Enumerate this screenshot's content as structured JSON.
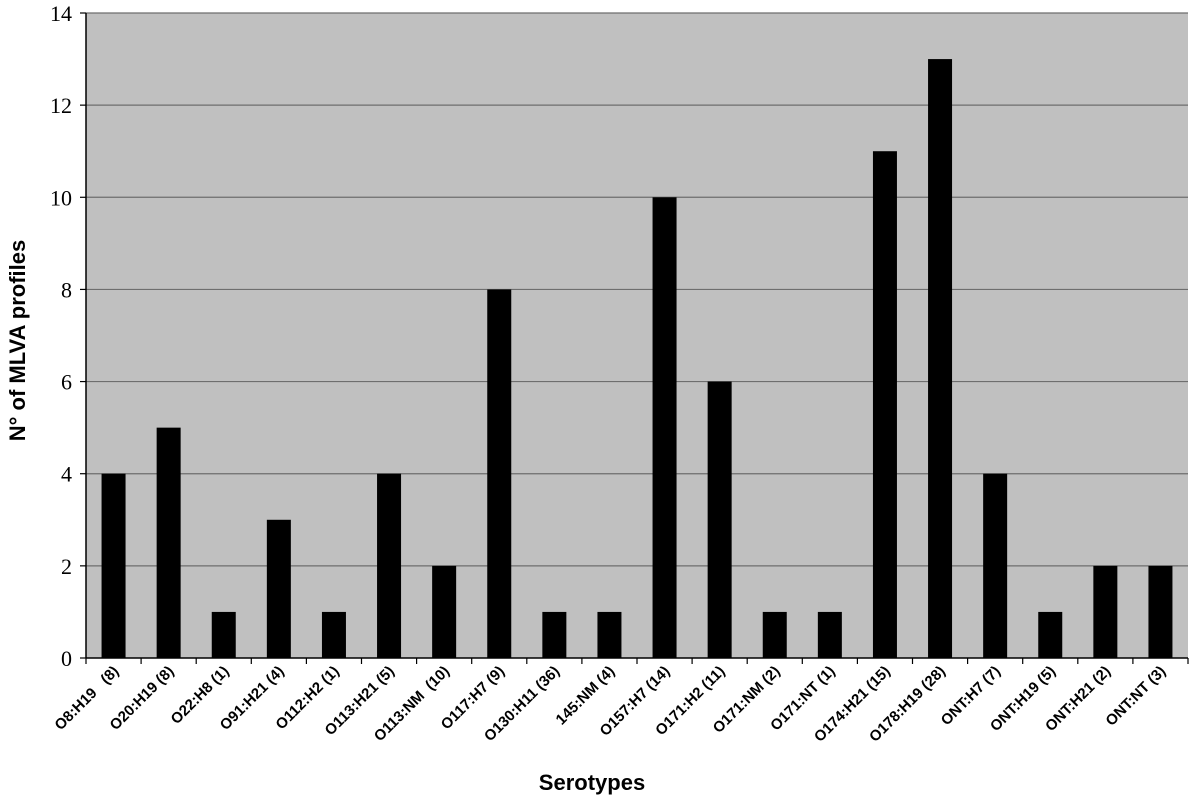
{
  "chart_data": {
    "type": "bar",
    "title": "",
    "xlabel": "Serotypes",
    "ylabel": "N° of MLVA profiles",
    "ylim": [
      0,
      14
    ],
    "yticks": [
      "0",
      "2",
      "4",
      "6",
      "8",
      "10",
      "12",
      "14"
    ],
    "grid": true,
    "legend": "none",
    "categories": [
      "O8:H19   (8)",
      "O20:H19 (8)",
      "O22:H8 (1)",
      "O91:H21 (4)",
      "O112:H2 (1)",
      "O113:H21 (5)",
      "O113:NM  (10)",
      "O117:H7 (9)",
      "O130:H11 (36)",
      "145:NM (4)",
      "O157:H7 (14)",
      "O171:H2 (11)",
      "O171:NM (2)",
      "O171:NT (1)",
      "O174:H21 (15)",
      "O178:H19 (28)",
      "ONT:H7 (7)",
      "ONT:H19 (5)",
      "ONT:H21 (2)",
      "ONT:NT (3)"
    ],
    "values": [
      4,
      5,
      1,
      3,
      1,
      4,
      2,
      8,
      1,
      1,
      10,
      6,
      1,
      1,
      11,
      13,
      4,
      1,
      2,
      2
    ],
    "colors": {
      "plot_bg": "#c0c0c0",
      "bar": "#000000",
      "grid": "#6e6e6e"
    }
  }
}
